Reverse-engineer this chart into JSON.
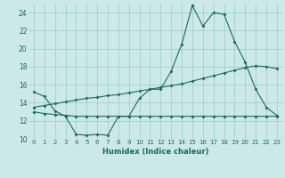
{
  "xlabel": "Humidex (Indice chaleur)",
  "bg_color": "#cce8e8",
  "grid_color": "#99cccc",
  "line_color": "#1a6b5a",
  "xlim": [
    -0.5,
    23.5
  ],
  "ylim": [
    10,
    25
  ],
  "yticks": [
    10,
    12,
    14,
    16,
    18,
    20,
    22,
    24
  ],
  "xticks": [
    0,
    1,
    2,
    3,
    4,
    5,
    6,
    7,
    8,
    9,
    10,
    11,
    12,
    13,
    14,
    15,
    16,
    17,
    18,
    19,
    20,
    21,
    22,
    23
  ],
  "line1_x": [
    0,
    1,
    2,
    3,
    4,
    5,
    6,
    7,
    8,
    9,
    10,
    11,
    12,
    13,
    14,
    15,
    16,
    17,
    18,
    19,
    20,
    21,
    22,
    23
  ],
  "line1_y": [
    15.2,
    14.7,
    13.1,
    12.5,
    10.5,
    10.4,
    10.5,
    10.4,
    12.5,
    12.5,
    14.5,
    15.5,
    15.5,
    17.5,
    20.5,
    24.8,
    22.5,
    24.0,
    23.8,
    20.8,
    18.5,
    15.5,
    13.5,
    12.6
  ],
  "line2_x": [
    0,
    1,
    2,
    3,
    4,
    5,
    6,
    7,
    8,
    9,
    10,
    11,
    12,
    13,
    14,
    15,
    16,
    17,
    18,
    19,
    20,
    21,
    22,
    23
  ],
  "line2_y": [
    13.0,
    12.8,
    12.7,
    12.6,
    12.5,
    12.5,
    12.5,
    12.5,
    12.5,
    12.5,
    12.5,
    12.5,
    12.5,
    12.5,
    12.5,
    12.5,
    12.5,
    12.5,
    12.5,
    12.5,
    12.5,
    12.5,
    12.5,
    12.5
  ],
  "line3_x": [
    0,
    1,
    2,
    3,
    4,
    5,
    6,
    7,
    8,
    9,
    10,
    11,
    12,
    13,
    14,
    15,
    16,
    17,
    18,
    19,
    20,
    21,
    22,
    23
  ],
  "line3_y": [
    13.5,
    13.7,
    13.9,
    14.1,
    14.3,
    14.5,
    14.6,
    14.8,
    14.9,
    15.1,
    15.3,
    15.5,
    15.7,
    15.9,
    16.1,
    16.4,
    16.7,
    17.0,
    17.3,
    17.6,
    17.9,
    18.1,
    18.0,
    17.8
  ]
}
